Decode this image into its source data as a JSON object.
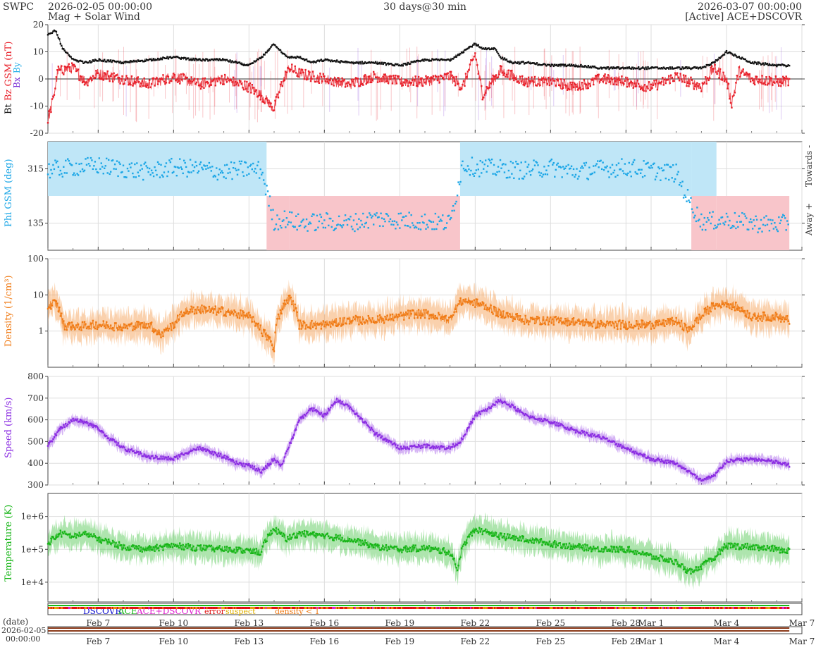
{
  "header": {
    "org": "SWPC",
    "start": "2026-02-05 00:00:00",
    "subtitle": "Mag + Solar Wind",
    "span": "30 days@30 min",
    "end": "2026-03-07 00:00:00",
    "source": "[Active] ACE+DSCOVR"
  },
  "colors": {
    "bt": "#111111",
    "bz": "#e8202a",
    "bx": "#7b2fd6",
    "by": "#2ab0e8",
    "phi": "#1ba6e6",
    "phi_towards_fill": "#bfe6f7",
    "phi_away_fill": "#f8c5ca",
    "density": "#f07a14",
    "speed": "#8a2be2",
    "temperature": "#16b516",
    "grid": "#dddddd",
    "dscovr": "#1010d0",
    "ace": "#18b818",
    "ace_dscovr": "#e020d0",
    "error": "#e01010",
    "suspect": "#e0b000",
    "density_flag": "#f07a14"
  },
  "x_axis": {
    "start_day": "2026-02-05",
    "tick_labels": [
      "Feb 7",
      "Feb 10",
      "Feb 13",
      "Feb 16",
      "Feb 19",
      "Feb 22",
      "Feb 25",
      "Feb 28",
      "Mar 1",
      "Mar 4",
      "Mar 7"
    ],
    "tick_day_offsets": [
      2,
      5,
      8,
      11,
      14,
      17,
      20,
      23,
      24,
      27,
      30
    ],
    "date_label": "(date)",
    "date_start": "2026-02-05",
    "time_start": "00:00:00"
  },
  "legend": {
    "dscovr": "DSCOVR",
    "ace": "ACE",
    "ace_dscovr": "ACE+DSCOVR",
    "error": "error",
    "suspect": "suspect",
    "density": "density < 1"
  },
  "chart_data": [
    {
      "type": "line",
      "panel": "magnetic-field",
      "ylabel_parts": [
        "Bt",
        "Bz GSM (nT)",
        "Bx",
        "By"
      ],
      "ylim": [
        -20,
        20
      ],
      "yticks": [
        -20,
        -10,
        0,
        10,
        20
      ],
      "series": [
        {
          "name": "Bt",
          "x": [
            0,
            0.3,
            0.6,
            1,
            1.5,
            2,
            3,
            4,
            5,
            6,
            7,
            8,
            8.5,
            9,
            9.5,
            10,
            10.5,
            11,
            12,
            13,
            14,
            15,
            16,
            17,
            17.3,
            17.8,
            18,
            18.5,
            19,
            20,
            21,
            22,
            23,
            24,
            25,
            26,
            26.5,
            27,
            27.5,
            28,
            29,
            29.5
          ],
          "y": [
            16,
            18,
            11,
            7,
            6,
            7,
            6,
            7,
            8,
            7,
            7,
            5,
            8,
            13,
            8,
            8,
            6,
            7,
            6,
            6,
            5,
            7,
            7,
            13,
            11,
            11,
            8,
            6,
            6,
            5,
            5,
            4,
            4,
            4,
            4,
            4,
            6,
            10,
            8,
            6,
            5,
            5
          ]
        },
        {
          "name": "Bz",
          "x": [
            0,
            0.2,
            0.4,
            1,
            1.5,
            2,
            3,
            4,
            5,
            6,
            7,
            8,
            8.5,
            9,
            9.3,
            9.6,
            10,
            11,
            12,
            13,
            14,
            15,
            16,
            16.5,
            17,
            17.3,
            17.6,
            18,
            19,
            20,
            21,
            22,
            23,
            24,
            25,
            26,
            26.5,
            27,
            27.2,
            27.5,
            28,
            29,
            29.5
          ],
          "y": [
            -15,
            -8,
            3,
            4,
            -1,
            2,
            0,
            -2,
            1,
            -2,
            0,
            -3,
            -6,
            -11,
            -2,
            4,
            2,
            0,
            -2,
            1,
            -1,
            -1,
            1,
            -3,
            9,
            -6,
            -2,
            3,
            -1,
            -1,
            -3,
            0,
            -1,
            -3,
            1,
            -3,
            4,
            0,
            -9,
            3,
            0,
            -1,
            -1
          ]
        }
      ]
    },
    {
      "type": "scatter",
      "panel": "phi-angle",
      "ylabel": "Phi GSM (deg)",
      "ylim": [
        45,
        405
      ],
      "yticks": [
        135,
        315
      ],
      "right_labels": [
        "Towards -",
        "Away +"
      ],
      "sectors": [
        {
          "from": 0,
          "to": 8.7,
          "sector": "towards"
        },
        {
          "from": 8.7,
          "to": 9.6,
          "sector": "away"
        },
        {
          "from": 9.6,
          "to": 16.4,
          "sector": "away"
        },
        {
          "from": 16.4,
          "to": 25.6,
          "sector": "towards"
        },
        {
          "from": 25.6,
          "to": 26.6,
          "sector": "mixed"
        },
        {
          "from": 26.6,
          "to": 29.5,
          "sector": "away"
        }
      ],
      "series": [
        {
          "name": "Phi",
          "x": [
            0,
            1,
            2,
            3,
            4,
            5,
            6,
            7,
            8,
            8.5,
            9,
            9.5,
            10,
            11,
            12,
            13,
            14,
            15,
            16,
            16.5,
            17,
            18,
            19,
            20,
            21,
            22,
            23,
            24,
            25,
            25.5,
            26,
            27,
            28,
            29,
            29.5
          ],
          "y": [
            310,
            320,
            325,
            315,
            305,
            320,
            315,
            305,
            315,
            310,
            140,
            150,
            135,
            140,
            135,
            150,
            145,
            140,
            135,
            330,
            320,
            315,
            310,
            320,
            305,
            315,
            320,
            310,
            300,
            210,
            140,
            145,
            135,
            130,
            135
          ]
        }
      ]
    },
    {
      "type": "line",
      "panel": "density",
      "ylabel": "Density (1/cm³)",
      "yscale": "log",
      "ylim": [
        0.1,
        100
      ],
      "yticks": [
        1,
        10,
        100
      ],
      "ytick_labels": [
        "1",
        "10",
        "100"
      ],
      "series": [
        {
          "name": "Density",
          "x": [
            0,
            0.3,
            0.6,
            1,
            2,
            3,
            4,
            4.5,
            5,
            5.5,
            6,
            7,
            8,
            8.5,
            9,
            9.3,
            9.6,
            10,
            11,
            12,
            13,
            14,
            14.5,
            15,
            16,
            16.5,
            17,
            18,
            19,
            20,
            21,
            22,
            23,
            24,
            25,
            25.5,
            26,
            26.5,
            27,
            28,
            29,
            29.5
          ],
          "y": [
            5,
            6,
            1.5,
            1.3,
            1.5,
            1.3,
            1.5,
            0.8,
            1.5,
            3.5,
            4,
            3.5,
            2.5,
            1,
            0.3,
            4,
            8,
            1.5,
            1.5,
            2,
            2,
            2.5,
            3,
            3,
            2,
            7,
            6,
            3,
            2,
            2,
            1.8,
            1.5,
            1.5,
            1.5,
            1.8,
            1,
            2.5,
            5,
            6,
            2.5,
            2.5,
            2
          ]
        }
      ]
    },
    {
      "type": "line",
      "panel": "speed",
      "ylabel": "Speed (km/s)",
      "ylim": [
        300,
        800
      ],
      "yticks": [
        300,
        400,
        500,
        600,
        700,
        800
      ],
      "series": [
        {
          "name": "Speed",
          "x": [
            0,
            0.5,
            1,
            1.5,
            2,
            2.5,
            3,
            4,
            5,
            5.5,
            6,
            7,
            7.5,
            8,
            8.5,
            9,
            9.3,
            9.6,
            10,
            10.5,
            11,
            11.5,
            12,
            12.5,
            13,
            14,
            15,
            16,
            16.5,
            17,
            17.5,
            18,
            18.5,
            19,
            20,
            21,
            22,
            23,
            24,
            25,
            26,
            26.5,
            27,
            28,
            29,
            29.5
          ],
          "y": [
            480,
            560,
            600,
            590,
            560,
            510,
            470,
            430,
            420,
            450,
            470,
            430,
            400,
            390,
            360,
            420,
            390,
            480,
            600,
            650,
            620,
            690,
            660,
            600,
            540,
            470,
            480,
            470,
            510,
            620,
            650,
            690,
            660,
            620,
            590,
            550,
            520,
            470,
            420,
            400,
            320,
            340,
            410,
            420,
            405,
            390
          ]
        }
      ]
    },
    {
      "type": "line",
      "panel": "temperature",
      "ylabel": "Temperature (K)",
      "yscale": "log",
      "ylim": [
        2500,
        5000000
      ],
      "yticks": [
        10000,
        100000,
        1000000
      ],
      "ytick_labels": [
        "1e+4",
        "1e+5",
        "1e+6"
      ],
      "series": [
        {
          "name": "Temperature",
          "x": [
            0,
            0.5,
            1,
            1.5,
            2,
            3,
            4,
            5,
            6,
            7,
            8,
            8.5,
            9,
            9.5,
            10,
            11,
            12,
            13,
            14,
            15,
            16,
            16.3,
            16.6,
            17,
            18,
            19,
            20,
            21,
            22,
            23,
            24,
            25,
            25.5,
            26,
            26.5,
            27,
            28,
            29,
            29.5
          ],
          "y": [
            150000,
            300000,
            250000,
            300000,
            200000,
            120000,
            100000,
            130000,
            110000,
            100000,
            90000,
            80000,
            400000,
            200000,
            300000,
            250000,
            200000,
            120000,
            100000,
            110000,
            80000,
            20000,
            150000,
            400000,
            250000,
            200000,
            150000,
            120000,
            100000,
            100000,
            60000,
            40000,
            20000,
            30000,
            50000,
            130000,
            120000,
            100000,
            90000
          ]
        }
      ]
    }
  ]
}
